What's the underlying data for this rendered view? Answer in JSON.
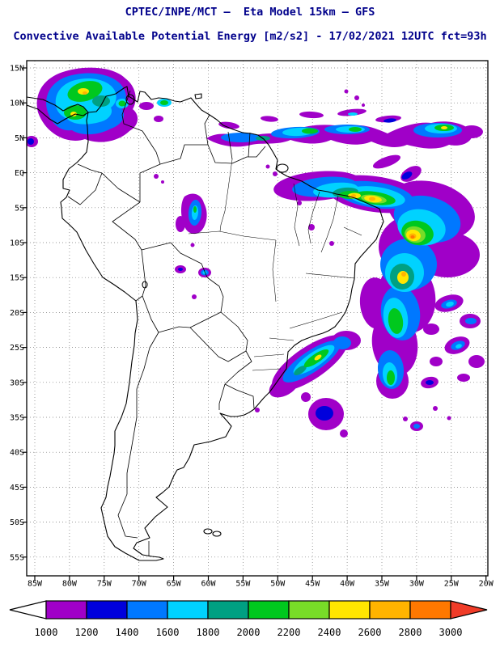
{
  "header": {
    "title_line1": "CPTEC/INPE/MCT —  Eta Model 15km — GFS",
    "title_line2": "Convective Available Potential Energy [m2/s2] - 17/02/2021 12UTC fct=93h",
    "title_color": "#00008b"
  },
  "map": {
    "lat_labels": [
      "15N",
      "10N",
      "5N",
      "EQ",
      "5S",
      "10S",
      "15S",
      "20S",
      "25S",
      "30S",
      "35S",
      "40S",
      "45S",
      "50S",
      "55S"
    ],
    "lon_labels": [
      "85W",
      "80W",
      "75W",
      "70W",
      "65W",
      "60W",
      "55W",
      "50W",
      "45W",
      "40W",
      "35W",
      "30W",
      "25W",
      "20W"
    ]
  },
  "colorbar": {
    "values": [
      "1000",
      "1200",
      "1400",
      "1600",
      "1800",
      "2000",
      "2200",
      "2400",
      "2600",
      "2800",
      "3000"
    ],
    "segment_colors": [
      "#a000c8",
      "#0000dc",
      "#0078ff",
      "#00d2ff",
      "#00a082",
      "#00c81e",
      "#78dc28",
      "#ffe600",
      "#ffb400",
      "#ff7800"
    ],
    "below_color": "#ffffff",
    "above_color": "#f03c28"
  },
  "chart_data": {
    "type": "heatmap",
    "title": "Convective Available Potential Energy [m2/s2]",
    "center": "CPTEC/INPE/MCT",
    "model": "Eta Model 15km — GFS",
    "valid_time": "17/02/2021 12UTC",
    "forecast": "fct=93h",
    "units": "m2/s2",
    "lat_range": [
      "15N",
      "55S"
    ],
    "lon_range": [
      "85W",
      "20W"
    ],
    "levels": [
      1000,
      1200,
      1400,
      1600,
      1800,
      2000,
      2200,
      2400,
      2600,
      2800,
      3000
    ],
    "level_colors": [
      "#a000c8",
      "#0000dc",
      "#0078ff",
      "#00d2ff",
      "#00a082",
      "#00c81e",
      "#78dc28",
      "#ffe600",
      "#ffb400",
      "#ff7800"
    ],
    "high_cape_regions": [
      "Northern Colombia and western Venezuela (cores > 2400 m2/s2)",
      "Atlantic ITCZ band near 5N from about 57W to 23W",
      "Northeast Brazil coast and adjacent Atlantic, 0S-12S (cores > 2600 m2/s2)",
      "Central Amazon near 5S 60W",
      "Southeast Brazil coast / South Atlantic band 24S-33S (cores ~2000 m2/s2)",
      "Scattered South Atlantic cells 17S-37S east of 35W"
    ]
  }
}
